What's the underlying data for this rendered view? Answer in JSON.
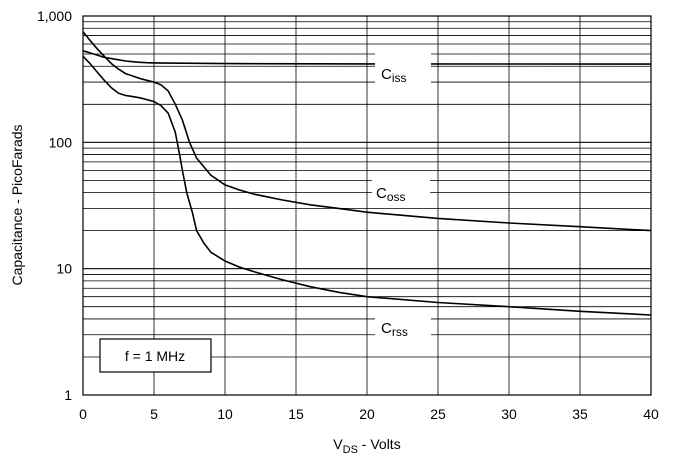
{
  "chart_data": {
    "type": "line",
    "title": "",
    "xlabel_main": "V",
    "xlabel_sub": "DS",
    "xlabel_rest": " - Volts",
    "ylabel": "Capacitance - PicoFarads",
    "xlim": [
      0,
      40
    ],
    "ylim": [
      1,
      1000
    ],
    "yscale": "log",
    "grid": true,
    "x_ticks": [
      "0",
      "5",
      "10",
      "15",
      "20",
      "25",
      "30",
      "35",
      "40"
    ],
    "y_ticks": [
      "1",
      "10",
      "100",
      "1,000"
    ],
    "annotation": "f = 1 MHz",
    "series": [
      {
        "name": "Ciss",
        "label_main": "C",
        "label_sub": "iss",
        "points": [
          [
            0,
            530
          ],
          [
            0.5,
            510
          ],
          [
            1,
            490
          ],
          [
            1.5,
            470
          ],
          [
            2,
            460
          ],
          [
            2.5,
            450
          ],
          [
            3,
            440
          ],
          [
            3.5,
            435
          ],
          [
            4,
            430
          ],
          [
            4.5,
            427
          ],
          [
            5,
            425
          ],
          [
            10,
            420
          ],
          [
            20,
            418
          ],
          [
            30,
            417
          ],
          [
            40,
            416
          ]
        ]
      },
      {
        "name": "Coss",
        "label_main": "C",
        "label_sub": "oss",
        "points": [
          [
            0,
            750
          ],
          [
            0.5,
            640
          ],
          [
            1,
            550
          ],
          [
            1.5,
            480
          ],
          [
            2,
            420
          ],
          [
            2.5,
            380
          ],
          [
            3,
            350
          ],
          [
            3.5,
            335
          ],
          [
            4,
            320
          ],
          [
            4.5,
            310
          ],
          [
            5,
            300
          ],
          [
            5.5,
            285
          ],
          [
            6,
            255
          ],
          [
            6.5,
            200
          ],
          [
            7,
            150
          ],
          [
            7.5,
            100
          ],
          [
            8,
            75
          ],
          [
            9,
            55
          ],
          [
            10,
            46
          ],
          [
            11,
            42
          ],
          [
            12,
            39
          ],
          [
            14,
            35
          ],
          [
            16,
            32
          ],
          [
            18,
            30
          ],
          [
            20,
            28
          ],
          [
            25,
            25
          ],
          [
            30,
            23
          ],
          [
            35,
            21.5
          ],
          [
            40,
            20
          ]
        ]
      },
      {
        "name": "Crss",
        "label_main": "C",
        "label_sub": "rss",
        "points": [
          [
            0,
            480
          ],
          [
            0.5,
            420
          ],
          [
            1,
            360
          ],
          [
            1.5,
            310
          ],
          [
            2,
            270
          ],
          [
            2.5,
            245
          ],
          [
            3,
            235
          ],
          [
            3.5,
            230
          ],
          [
            4,
            225
          ],
          [
            4.5,
            218
          ],
          [
            5,
            210
          ],
          [
            5.5,
            195
          ],
          [
            6,
            170
          ],
          [
            6.5,
            120
          ],
          [
            6.8,
            80
          ],
          [
            7,
            60
          ],
          [
            7.3,
            40
          ],
          [
            7.7,
            28
          ],
          [
            8,
            20
          ],
          [
            8.5,
            16
          ],
          [
            9,
            13.5
          ],
          [
            10,
            11.5
          ],
          [
            11,
            10.3
          ],
          [
            12,
            9.5
          ],
          [
            14,
            8.2
          ],
          [
            16,
            7.2
          ],
          [
            18,
            6.5
          ],
          [
            20,
            6
          ],
          [
            25,
            5.4
          ],
          [
            30,
            5
          ],
          [
            35,
            4.6
          ],
          [
            40,
            4.3
          ]
        ]
      }
    ]
  }
}
